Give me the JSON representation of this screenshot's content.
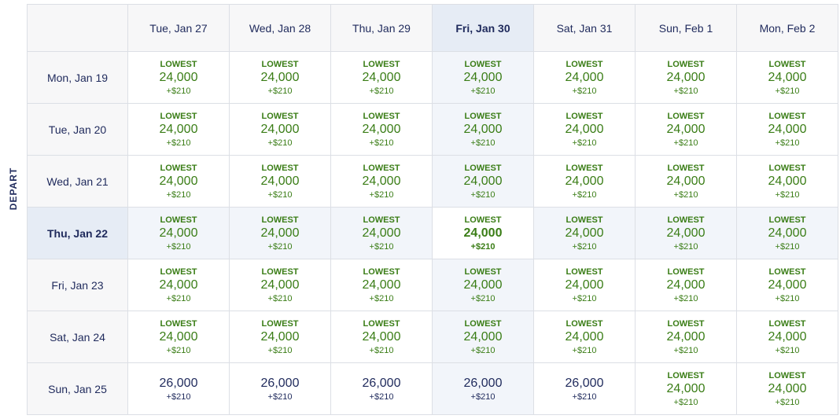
{
  "axis_label": "DEPART",
  "columns": [
    "Tue, Jan 27",
    "Wed, Jan 28",
    "Thu, Jan 29",
    "Fri, Jan 30",
    "Sat, Jan 31",
    "Sun, Feb 1",
    "Mon, Feb 2"
  ],
  "rows": [
    {
      "label": "Mon, Jan 19",
      "cells": [
        {
          "tag": "LOWEST",
          "points": "24,000",
          "fee": "+$210"
        },
        {
          "tag": "LOWEST",
          "points": "24,000",
          "fee": "+$210"
        },
        {
          "tag": "LOWEST",
          "points": "24,000",
          "fee": "+$210"
        },
        {
          "tag": "LOWEST",
          "points": "24,000",
          "fee": "+$210"
        },
        {
          "tag": "LOWEST",
          "points": "24,000",
          "fee": "+$210"
        },
        {
          "tag": "LOWEST",
          "points": "24,000",
          "fee": "+$210"
        },
        {
          "tag": "LOWEST",
          "points": "24,000",
          "fee": "+$210"
        }
      ]
    },
    {
      "label": "Tue, Jan 20",
      "cells": [
        {
          "tag": "LOWEST",
          "points": "24,000",
          "fee": "+$210"
        },
        {
          "tag": "LOWEST",
          "points": "24,000",
          "fee": "+$210"
        },
        {
          "tag": "LOWEST",
          "points": "24,000",
          "fee": "+$210"
        },
        {
          "tag": "LOWEST",
          "points": "24,000",
          "fee": "+$210"
        },
        {
          "tag": "LOWEST",
          "points": "24,000",
          "fee": "+$210"
        },
        {
          "tag": "LOWEST",
          "points": "24,000",
          "fee": "+$210"
        },
        {
          "tag": "LOWEST",
          "points": "24,000",
          "fee": "+$210"
        }
      ]
    },
    {
      "label": "Wed, Jan 21",
      "cells": [
        {
          "tag": "LOWEST",
          "points": "24,000",
          "fee": "+$210"
        },
        {
          "tag": "LOWEST",
          "points": "24,000",
          "fee": "+$210"
        },
        {
          "tag": "LOWEST",
          "points": "24,000",
          "fee": "+$210"
        },
        {
          "tag": "LOWEST",
          "points": "24,000",
          "fee": "+$210"
        },
        {
          "tag": "LOWEST",
          "points": "24,000",
          "fee": "+$210"
        },
        {
          "tag": "LOWEST",
          "points": "24,000",
          "fee": "+$210"
        },
        {
          "tag": "LOWEST",
          "points": "24,000",
          "fee": "+$210"
        }
      ]
    },
    {
      "label": "Thu, Jan 22",
      "cells": [
        {
          "tag": "LOWEST",
          "points": "24,000",
          "fee": "+$210"
        },
        {
          "tag": "LOWEST",
          "points": "24,000",
          "fee": "+$210"
        },
        {
          "tag": "LOWEST",
          "points": "24,000",
          "fee": "+$210"
        },
        {
          "tag": "LOWEST",
          "points": "24,000",
          "fee": "+$210"
        },
        {
          "tag": "LOWEST",
          "points": "24,000",
          "fee": "+$210"
        },
        {
          "tag": "LOWEST",
          "points": "24,000",
          "fee": "+$210"
        },
        {
          "tag": "LOWEST",
          "points": "24,000",
          "fee": "+$210"
        }
      ]
    },
    {
      "label": "Fri, Jan 23",
      "cells": [
        {
          "tag": "LOWEST",
          "points": "24,000",
          "fee": "+$210"
        },
        {
          "tag": "LOWEST",
          "points": "24,000",
          "fee": "+$210"
        },
        {
          "tag": "LOWEST",
          "points": "24,000",
          "fee": "+$210"
        },
        {
          "tag": "LOWEST",
          "points": "24,000",
          "fee": "+$210"
        },
        {
          "tag": "LOWEST",
          "points": "24,000",
          "fee": "+$210"
        },
        {
          "tag": "LOWEST",
          "points": "24,000",
          "fee": "+$210"
        },
        {
          "tag": "LOWEST",
          "points": "24,000",
          "fee": "+$210"
        }
      ]
    },
    {
      "label": "Sat, Jan 24",
      "cells": [
        {
          "tag": "LOWEST",
          "points": "24,000",
          "fee": "+$210"
        },
        {
          "tag": "LOWEST",
          "points": "24,000",
          "fee": "+$210"
        },
        {
          "tag": "LOWEST",
          "points": "24,000",
          "fee": "+$210"
        },
        {
          "tag": "LOWEST",
          "points": "24,000",
          "fee": "+$210"
        },
        {
          "tag": "LOWEST",
          "points": "24,000",
          "fee": "+$210"
        },
        {
          "tag": "LOWEST",
          "points": "24,000",
          "fee": "+$210"
        },
        {
          "tag": "LOWEST",
          "points": "24,000",
          "fee": "+$210"
        }
      ]
    },
    {
      "label": "Sun, Jan 25",
      "cells": [
        {
          "tag": "",
          "points": "26,000",
          "fee": "+$210"
        },
        {
          "tag": "",
          "points": "26,000",
          "fee": "+$210"
        },
        {
          "tag": "",
          "points": "26,000",
          "fee": "+$210"
        },
        {
          "tag": "",
          "points": "26,000",
          "fee": "+$210"
        },
        {
          "tag": "",
          "points": "26,000",
          "fee": "+$210"
        },
        {
          "tag": "LOWEST",
          "points": "24,000",
          "fee": "+$210"
        },
        {
          "tag": "LOWEST",
          "points": "24,000",
          "fee": "+$210"
        }
      ]
    }
  ],
  "selected_row": 3,
  "selected_col": 3,
  "colors": {
    "lowest_green": "#3a7d16",
    "text_navy": "#1f2a5c",
    "selected_bg": "#e6ecf5",
    "highlight_bg": "#f2f5fa",
    "header_bg": "#f7f7f8",
    "border": "#dcdfe5"
  }
}
